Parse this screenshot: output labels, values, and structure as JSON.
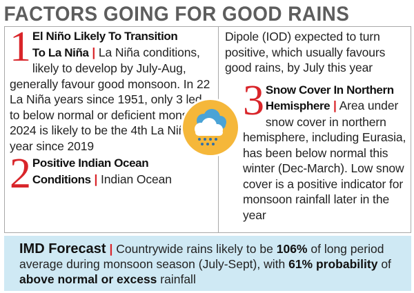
{
  "headline": "FACTORS GOING FOR GOOD RAINS",
  "factors": [
    {
      "number": "1",
      "heading_line1": "El Niño Likely To Transition",
      "heading_line2": "To La Niña",
      "separator": "|",
      "body": "La Niña conditions, likely to develop by July-Aug, generally favour good monsoon. In 22 La Niña years since 1951, only 3 led to below normal or deficient monsoon. 2024 is likely to be the 4th La Niña year since 2019"
    },
    {
      "number": "2",
      "heading_line1": "Positive Indian Ocean",
      "heading_line2": "Conditions",
      "separator": "|",
      "body_start": "Indian Ocean",
      "body_continued": "Dipole (IOD) expected to turn positive, which usually favours good rains, by July this year"
    },
    {
      "number": "3",
      "heading_line1": "Snow Cover In Northern",
      "heading_line2": "Hemisphere",
      "separator": "|",
      "body": "Area under snow cover in northern hemisphere, including Eurasia, has been below normal this winter (Dec-March). Low snow cover is a positive indicator for monsoon rainfall later in the year"
    }
  ],
  "forecast": {
    "title": "IMD Forecast",
    "separator": "|",
    "text_1": "Countrywide rains likely to be",
    "pct_1": "106%",
    "text_2": "of long period average during monsoon season (July-Sept), with",
    "pct_2": "61% probability",
    "text_3": "of",
    "emph": "above normal or excess",
    "text_4": "rainfall"
  },
  "icon": "rain-cloud-icon",
  "colors": {
    "accent_red": "#d9252a",
    "headline_gray": "#5d5d5d",
    "icon_orange": "#f5b73a",
    "cloud_blue": "#4aa3d6",
    "forecast_bg": "#cfe9f4"
  }
}
